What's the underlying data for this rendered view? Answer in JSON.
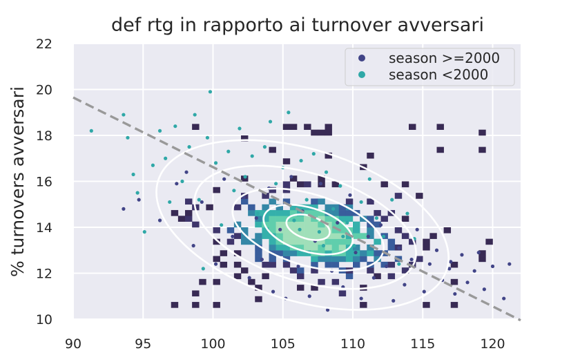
{
  "chart_data": {
    "type": "scatter",
    "title": "def rtg in rapporto ai turnover avversari",
    "xlabel": "",
    "ylabel": "% turnovers avversari",
    "xlim": [
      90,
      122
    ],
    "ylim": [
      10,
      22
    ],
    "xticks": [
      "90",
      "95",
      "100",
      "105",
      "110",
      "115",
      "120"
    ],
    "yticks": [
      "10",
      "12",
      "14",
      "16",
      "18",
      "20",
      "22"
    ],
    "grid": true,
    "legend_position": "top-right",
    "background": "#eaeaf2",
    "series": [
      {
        "name": "season >=2000",
        "color": "#414487",
        "points": [
          [
            93.6,
            14.8
          ],
          [
            94.7,
            15.2
          ],
          [
            96.2,
            14.3
          ],
          [
            97.4,
            15.9
          ],
          [
            98.1,
            16.4
          ],
          [
            98.6,
            13.2
          ],
          [
            99.2,
            15.1
          ],
          [
            100.2,
            12.4
          ],
          [
            100.8,
            16.1
          ],
          [
            101.4,
            13.6
          ],
          [
            102.2,
            15.3
          ],
          [
            102.6,
            11.8
          ],
          [
            103.1,
            14.4
          ],
          [
            103.5,
            12.6
          ],
          [
            104.0,
            15.7
          ],
          [
            104.3,
            11.2
          ],
          [
            104.8,
            13.9
          ],
          [
            105.2,
            10.9
          ],
          [
            105.6,
            16.2
          ],
          [
            106.1,
            12.3
          ],
          [
            106.4,
            14.7
          ],
          [
            106.9,
            11.0
          ],
          [
            107.3,
            13.4
          ],
          [
            107.7,
            15.9
          ],
          [
            108.2,
            10.4
          ],
          [
            108.5,
            12.1
          ],
          [
            108.9,
            14.2
          ],
          [
            109.3,
            11.4
          ],
          [
            109.8,
            15.4
          ],
          [
            110.2,
            12.9
          ],
          [
            110.6,
            10.9
          ],
          [
            111.1,
            13.6
          ],
          [
            111.5,
            11.8
          ],
          [
            112.0,
            14.1
          ],
          [
            112.4,
            12.3
          ],
          [
            112.9,
            10.8
          ],
          [
            113.3,
            13.1
          ],
          [
            113.7,
            11.5
          ],
          [
            114.2,
            12.6
          ],
          [
            114.6,
            13.9
          ],
          [
            115.1,
            11.2
          ],
          [
            115.5,
            12.4
          ],
          [
            116.0,
            13.0
          ],
          [
            116.4,
            11.7
          ],
          [
            116.9,
            12.2
          ],
          [
            117.3,
            11.1
          ],
          [
            117.8,
            12.8
          ],
          [
            118.2,
            11.6
          ],
          [
            118.7,
            12.1
          ],
          [
            119.4,
            11.3
          ],
          [
            120.0,
            12.3
          ],
          [
            120.8,
            10.9
          ],
          [
            121.2,
            12.4
          ],
          [
            119.0,
            12.9
          ],
          [
            117.0,
            12.5
          ]
        ]
      },
      {
        "name": "season <2000",
        "color": "#2fa8a7",
        "points": [
          [
            91.3,
            18.2
          ],
          [
            93.6,
            18.9
          ],
          [
            93.9,
            17.9
          ],
          [
            94.3,
            16.3
          ],
          [
            94.6,
            15.5
          ],
          [
            95.1,
            13.8
          ],
          [
            95.7,
            16.7
          ],
          [
            96.2,
            18.2
          ],
          [
            96.6,
            17.0
          ],
          [
            96.9,
            15.1
          ],
          [
            97.3,
            18.4
          ],
          [
            97.8,
            16.0
          ],
          [
            98.3,
            17.5
          ],
          [
            98.7,
            18.9
          ],
          [
            99.0,
            15.2
          ],
          [
            99.3,
            12.2
          ],
          [
            99.6,
            17.9
          ],
          [
            99.8,
            19.9
          ],
          [
            100.2,
            16.8
          ],
          [
            100.6,
            14.1
          ],
          [
            101.1,
            17.3
          ],
          [
            101.5,
            15.6
          ],
          [
            101.9,
            18.3
          ],
          [
            102.3,
            16.2
          ],
          [
            102.8,
            17.1
          ],
          [
            103.2,
            14.6
          ],
          [
            103.7,
            17.5
          ],
          [
            104.1,
            18.6
          ],
          [
            104.5,
            15.9
          ],
          [
            105.0,
            16.6
          ],
          [
            105.4,
            19.0
          ],
          [
            105.8,
            14.3
          ],
          [
            106.3,
            16.9
          ],
          [
            106.7,
            15.2
          ],
          [
            107.2,
            17.2
          ],
          [
            107.6,
            13.8
          ],
          [
            108.1,
            16.4
          ],
          [
            108.6,
            14.8
          ],
          [
            109.1,
            15.8
          ],
          [
            109.6,
            14.2
          ],
          [
            110.1,
            13.2
          ],
          [
            110.6,
            15.1
          ],
          [
            111.2,
            16.1
          ],
          [
            111.7,
            14.4
          ],
          [
            112.2,
            13.6
          ],
          [
            112.8,
            15.2
          ],
          [
            113.3,
            12.4
          ],
          [
            113.9,
            14.6
          ],
          [
            114.4,
            13.5
          ],
          [
            109.3,
            13.6
          ],
          [
            107.9,
            13.2
          ],
          [
            106.2,
            13.9
          ]
        ]
      }
    ],
    "histogram2d": {
      "bin_width_x": 0.5,
      "bin_height_y": 0.25,
      "colors": [
        "#382a54",
        "#3e356b",
        "#395d9c",
        "#3487a6",
        "#35b0ab",
        "#60ceac",
        "#a0dfb9"
      ]
    },
    "density_contours": [
      {
        "center": [
          106.8,
          14.0
        ],
        "rx": 1.6,
        "ry": 0.5
      },
      {
        "center": [
          106.8,
          13.9
        ],
        "rx": 3.3,
        "ry": 0.95
      },
      {
        "center": [
          106.8,
          13.9
        ],
        "rx": 5.6,
        "ry": 1.55
      },
      {
        "center": [
          106.6,
          14.0
        ],
        "rx": 8.2,
        "ry": 2.35
      },
      {
        "center": [
          106.4,
          14.1
        ],
        "rx": 10.8,
        "ry": 3.3
      }
    ],
    "regression_line": {
      "x": [
        90,
        122
      ],
      "y": [
        19.65,
        9.95
      ],
      "color": "#999999",
      "style": "dashed"
    }
  }
}
